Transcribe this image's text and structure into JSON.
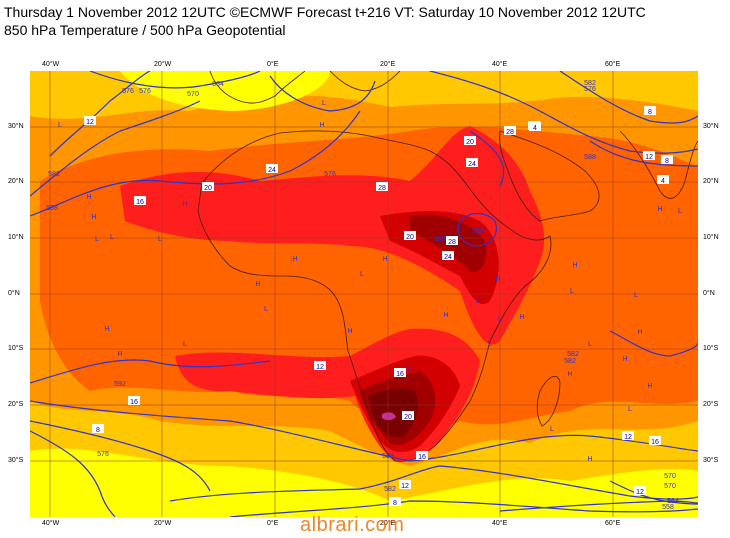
{
  "header": {
    "line1": "Thursday 1 November 2012 12UTC ©ECMWF Forecast t+216 VT: Saturday 10 November 2012 12UTC",
    "line2": "850 hPa Temperature / 500 hPa Geopotential"
  },
  "axes": {
    "lon_labels": [
      "40°W",
      "20°W",
      "0°E",
      "20°E",
      "40°E",
      "60°E"
    ],
    "lat_labels": [
      "30°N",
      "20°N",
      "10°N",
      "0°N",
      "10°S",
      "20°S",
      "30°S"
    ]
  },
  "colors": {
    "yellow": "#ffff00",
    "lightorange": "#ffc800",
    "orange": "#ff9600",
    "darkorange": "#ff6400",
    "red": "#ff1e1e",
    "crimson": "#d20000",
    "darkred": "#a00000",
    "maroon": "#780000",
    "pink": "#c83296",
    "contour": "#3232c8",
    "grid": "#8a3a2a",
    "coast": "#4a1a10"
  },
  "map": {
    "temperature_labels": [
      "12",
      "16",
      "20",
      "24",
      "28",
      "20",
      "24",
      "28",
      "20",
      "24",
      "28",
      "16",
      "12",
      "16",
      "20",
      "16",
      "12",
      "8",
      "4",
      "12",
      "8",
      "4",
      "8",
      "12",
      "16",
      "12",
      "8",
      "16"
    ],
    "geopotential_labels": [
      "564",
      "570",
      "576",
      "582",
      "588",
      "576",
      "582",
      "588",
      "582",
      "588",
      "582",
      "576",
      "570",
      "564",
      "558",
      "570",
      "576",
      "588",
      "592",
      "582",
      "582",
      "576"
    ],
    "pressure_marks": [
      "L",
      "H",
      "L",
      "H",
      "L",
      "H",
      "L",
      "H",
      "H",
      "L",
      "H",
      "H",
      "L",
      "L",
      "H",
      "L",
      "H",
      "H",
      "L",
      "H",
      "L",
      "H",
      "L",
      "H",
      "L",
      "H",
      "L",
      "H",
      "L",
      "H",
      "L",
      "H",
      "L",
      "H",
      "L",
      "H",
      "L",
      "H"
    ]
  },
  "watermark": "albrari.com"
}
